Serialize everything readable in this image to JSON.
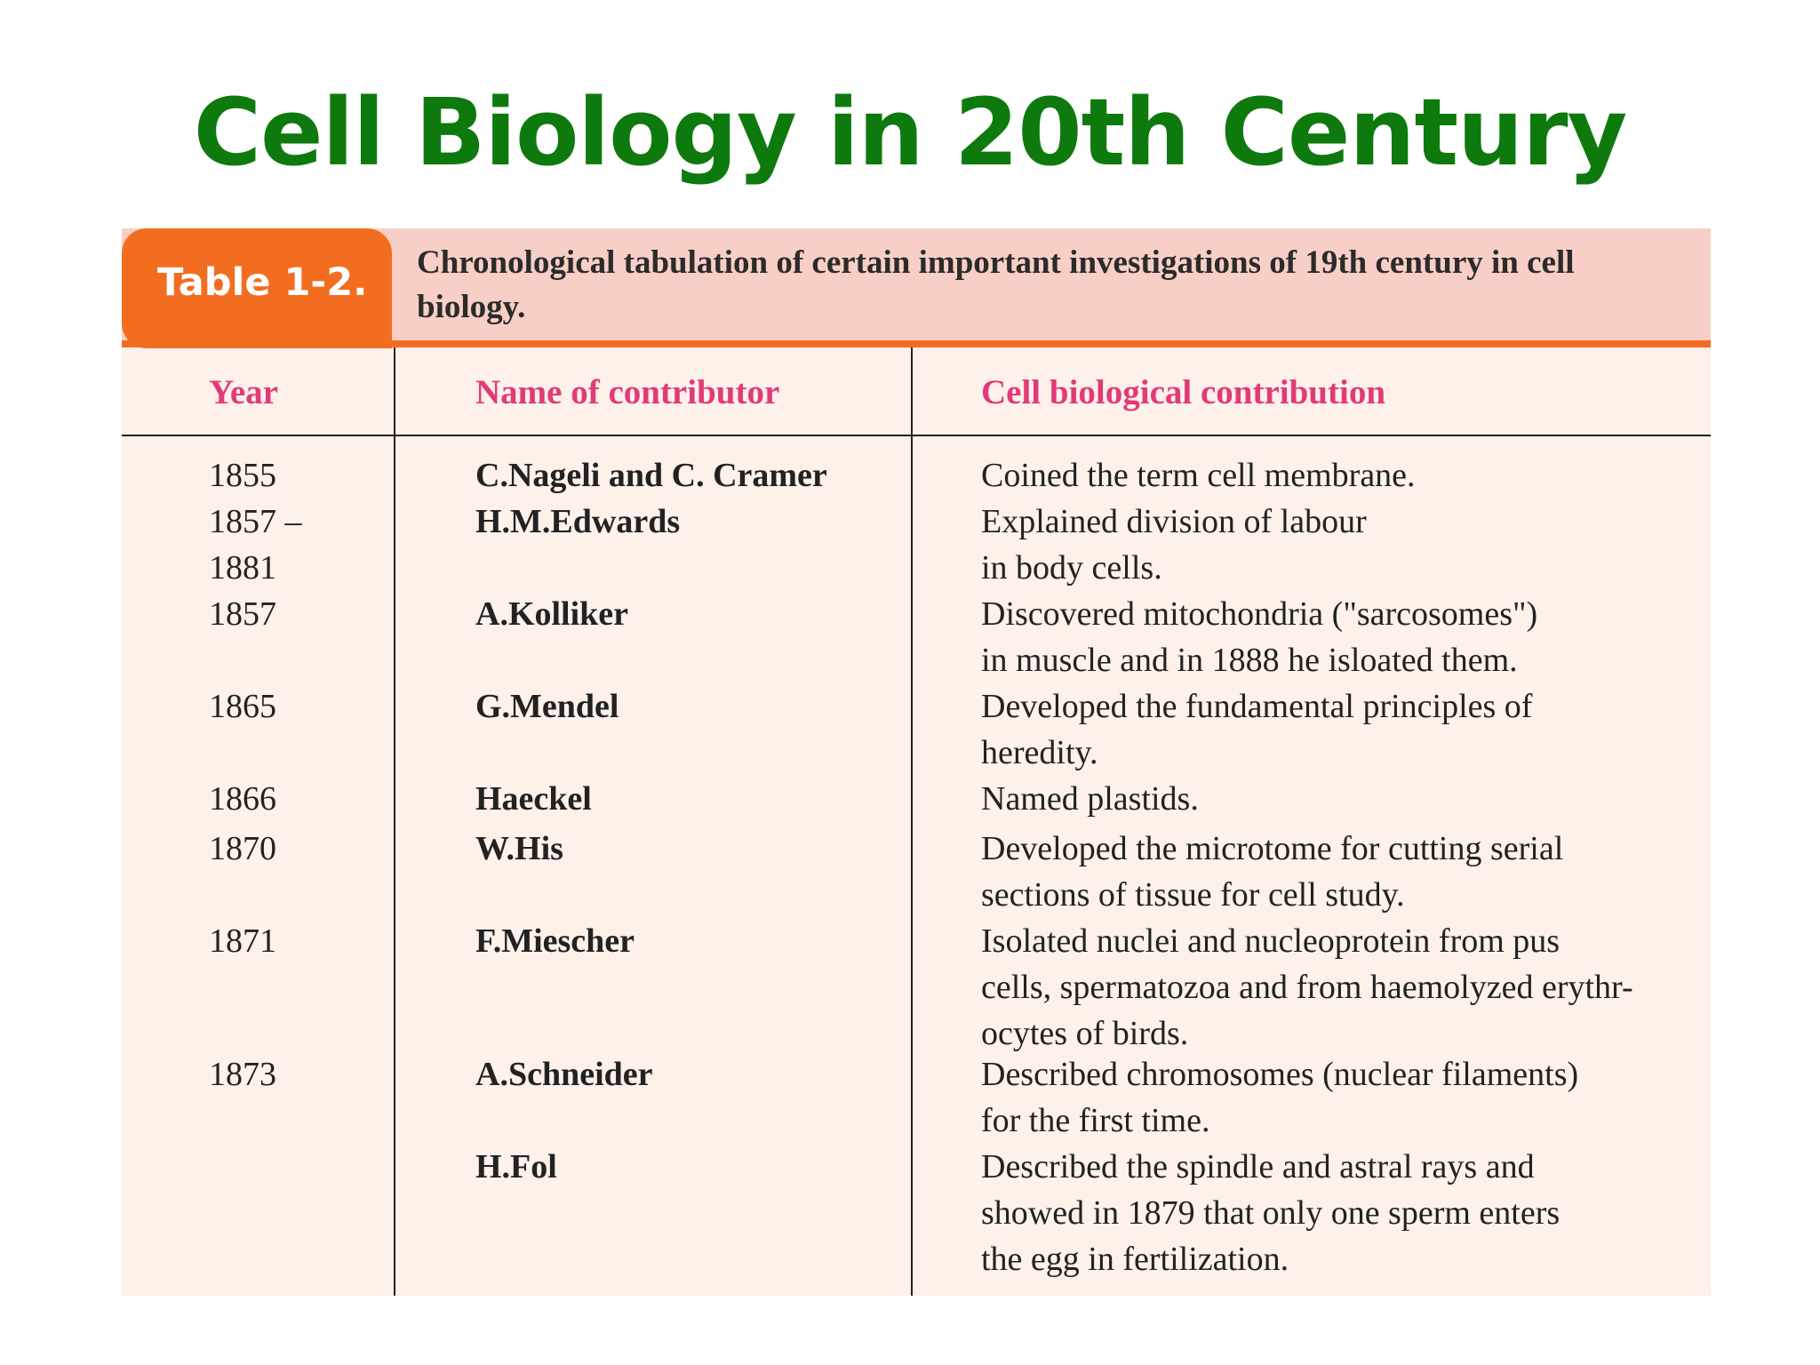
{
  "slide": {
    "title": "Cell Biology in 20th Century"
  },
  "table": {
    "label": "Table 1-2.",
    "caption": "Chronological tabulation of certain important investigations of 19th century in cell biology.",
    "headers": [
      "Year",
      "Name of contributor",
      "Cell biological contribution"
    ],
    "rows": [
      {
        "year": "1855",
        "name": "C.Nageli and C. Cramer",
        "contribution": "Coined the term cell membrane."
      },
      {
        "year": "1857 –\n1881",
        "name": "H.M.Edwards",
        "contribution": "Explained division of labour\nin body cells."
      },
      {
        "year": "1857",
        "name": "A.Kolliker",
        "contribution": "Discovered mitochondria (\"sarcosomes\")\nin muscle and in 1888 he isloated them."
      },
      {
        "year": "1865",
        "name": "G.Mendel",
        "contribution": "Developed the fundamental principles of\nheredity."
      },
      {
        "year": "1866",
        "name": "Haeckel",
        "contribution": "Named plastids."
      },
      {
        "year": "1870",
        "name": "W.His",
        "contribution": "Developed the microtome for cutting serial\nsections of tissue for cell study."
      },
      {
        "year": "1871",
        "name": "F.Miescher",
        "contribution": "Isolated nuclei and nucleoprotein from pus\ncells, spermatozoa and from haemolyzed erythr-\nocytes of birds."
      },
      {
        "year": "1873",
        "name": "A.Schneider",
        "contribution": "Described chromosomes (nuclear filaments)\nfor the first time."
      },
      {
        "year": "",
        "name": "H.Fol",
        "contribution": "Described the spindle and astral rays and\nshowed in 1879 that only one sperm enters\nthe egg in fertilization."
      }
    ]
  },
  "colors": {
    "title": "#0e7a0e",
    "tab": "#f36d21",
    "caption_band": "#f8cfc6",
    "header_text": "#e23a78",
    "table_bg": "#fdf1e9"
  }
}
